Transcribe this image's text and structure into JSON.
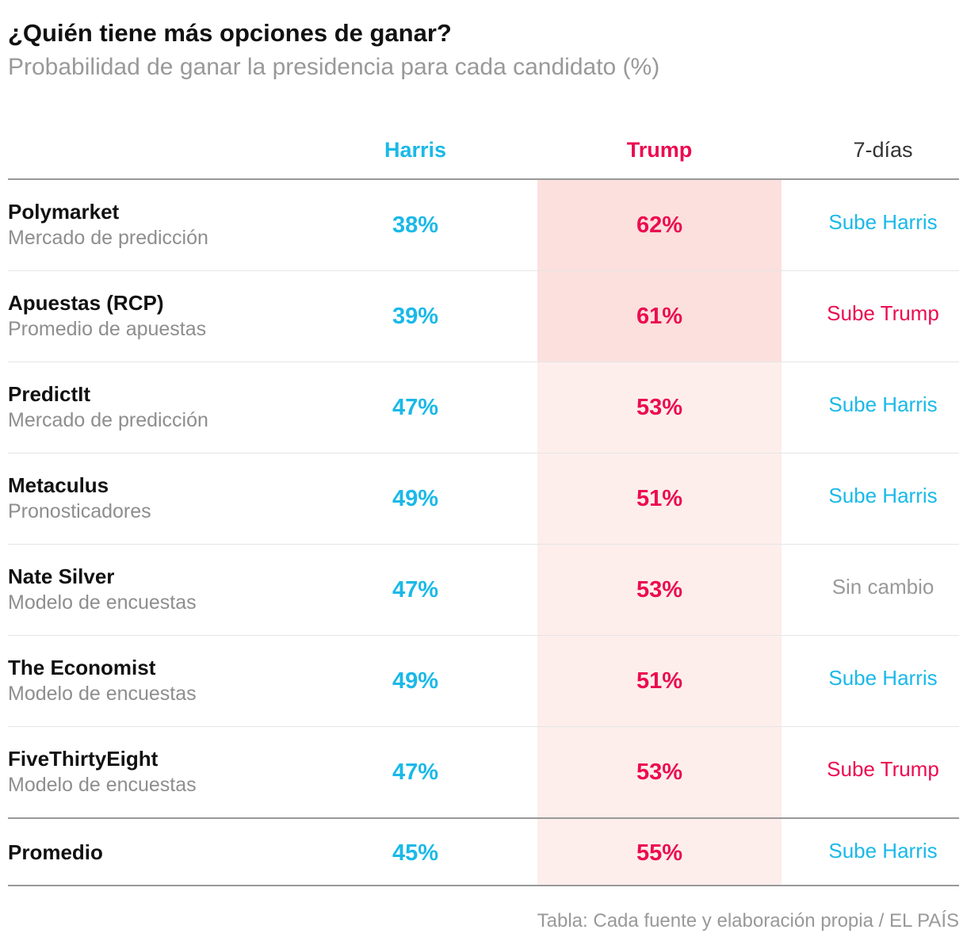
{
  "title": "¿Quién tiene más opciones de ganar?",
  "subtitle": "Probabilidad de ganar la presidencia para cada candidato (%)",
  "colors": {
    "harris": "#1ab9e8",
    "trump": "#ec0b50",
    "neutral": "#999999",
    "trump_shade_strong": "#fbe0dd",
    "trump_shade_light": "#fdeeec"
  },
  "columns": {
    "harris": "Harris",
    "trump": "Trump",
    "trend": "7-días"
  },
  "chart_data": {
    "type": "table",
    "title": "¿Quién tiene más opciones de ganar?",
    "subtitle": "Probabilidad de ganar la presidencia para cada candidato (%)",
    "columns": [
      "Harris",
      "Trump",
      "7-días"
    ],
    "rows": [
      {
        "source": "Polymarket",
        "type": "Mercado de predicción",
        "harris": "38%",
        "trump": "62%",
        "trend": "Sube Harris",
        "trend_color": "harris",
        "shade": "strong"
      },
      {
        "source": "Apuestas (RCP)",
        "type": "Promedio de apuestas",
        "harris": "39%",
        "trump": "61%",
        "trend": "Sube Trump",
        "trend_color": "trump",
        "shade": "strong"
      },
      {
        "source": "PredictIt",
        "type": "Mercado de predicción",
        "harris": "47%",
        "trump": "53%",
        "trend": "Sube Harris",
        "trend_color": "harris",
        "shade": "light"
      },
      {
        "source": "Metaculus",
        "type": "Pronosticadores",
        "harris": "49%",
        "trump": "51%",
        "trend": "Sube Harris",
        "trend_color": "harris",
        "shade": "light"
      },
      {
        "source": "Nate Silver",
        "type": "Modelo de encuestas",
        "harris": "47%",
        "trump": "53%",
        "trend": "Sin cambio",
        "trend_color": "neutral",
        "shade": "light"
      },
      {
        "source": "The Economist",
        "type": "Modelo de encuestas",
        "harris": "49%",
        "trump": "51%",
        "trend": "Sube Harris",
        "trend_color": "harris",
        "shade": "light"
      },
      {
        "source": "FiveThirtyEight",
        "type": "Modelo de encuestas",
        "harris": "47%",
        "trump": "53%",
        "trend": "Sube Trump",
        "trend_color": "trump",
        "shade": "light"
      }
    ],
    "average": {
      "source": "Promedio",
      "harris": "45%",
      "trump": "55%",
      "trend": "Sube Harris",
      "trend_color": "harris",
      "shade": "light"
    }
  },
  "footer": "Tabla: Cada fuente y elaboración propia / EL PAÍS"
}
